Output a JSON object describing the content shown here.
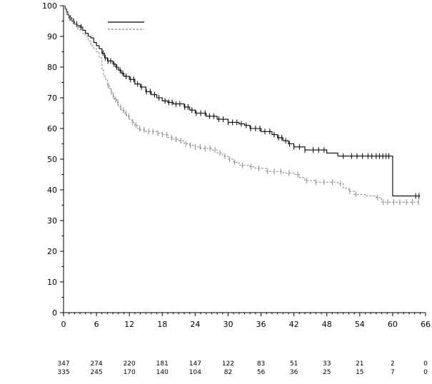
{
  "chart_data": {
    "type": "line",
    "title": "",
    "xlabel": "",
    "ylabel": "",
    "xlim": [
      0,
      66
    ],
    "ylim": [
      0,
      100
    ],
    "x_ticks": [
      0,
      6,
      12,
      18,
      24,
      30,
      36,
      42,
      48,
      54,
      60,
      66
    ],
    "y_ticks": [
      0,
      10,
      20,
      30,
      40,
      50,
      60,
      70,
      80,
      90,
      100
    ],
    "grid": false,
    "legend": {
      "placement": "top-left",
      "entries": [
        {
          "style": "solid",
          "color": "#000000"
        },
        {
          "style": "dashed",
          "color": "#888888"
        }
      ]
    },
    "series": [
      {
        "style": "solid",
        "color": "#000000",
        "points": [
          [
            0,
            100
          ],
          [
            0.3,
            99
          ],
          [
            0.5,
            98
          ],
          [
            0.8,
            97
          ],
          [
            1,
            96
          ],
          [
            1.5,
            95
          ],
          [
            2,
            94
          ],
          [
            2.5,
            93.5
          ],
          [
            3,
            93
          ],
          [
            3.5,
            92
          ],
          [
            4,
            91
          ],
          [
            4.5,
            90
          ],
          [
            5,
            89.5
          ],
          [
            5.5,
            88
          ],
          [
            6,
            87
          ],
          [
            6.5,
            86
          ],
          [
            7,
            84.5
          ],
          [
            7.5,
            83
          ],
          [
            8,
            82
          ],
          [
            9,
            81
          ],
          [
            9.5,
            80
          ],
          [
            10,
            79
          ],
          [
            10.5,
            78
          ],
          [
            11,
            77
          ],
          [
            12,
            76
          ],
          [
            13,
            74.5
          ],
          [
            14,
            73.5
          ],
          [
            15,
            72
          ],
          [
            16,
            71
          ],
          [
            17,
            70
          ],
          [
            18,
            69
          ],
          [
            19,
            68.5
          ],
          [
            20,
            68
          ],
          [
            22,
            67
          ],
          [
            23,
            66
          ],
          [
            24,
            65
          ],
          [
            26,
            64
          ],
          [
            28,
            63
          ],
          [
            30,
            62
          ],
          [
            32,
            61.5
          ],
          [
            33,
            61
          ],
          [
            34,
            60
          ],
          [
            36,
            59
          ],
          [
            38,
            58
          ],
          [
            39,
            57
          ],
          [
            40,
            56
          ],
          [
            41,
            55
          ],
          [
            42,
            54
          ],
          [
            44,
            53
          ],
          [
            48,
            52
          ],
          [
            50,
            51
          ],
          [
            52,
            51
          ],
          [
            55,
            51
          ],
          [
            58,
            51
          ],
          [
            59.9,
            51
          ],
          [
            60,
            38
          ],
          [
            62,
            38
          ],
          [
            64,
            38
          ],
          [
            65,
            38
          ]
        ],
        "censor_x": [
          0.6,
          1.2,
          1.8,
          2.4,
          3.2,
          7.2,
          7.6,
          8.1,
          8.6,
          9.2,
          9.7,
          10.3,
          10.8,
          11.4,
          12.2,
          12.8,
          13.5,
          14.2,
          15.1,
          15.8,
          16.6,
          17.4,
          18.5,
          19.2,
          19.8,
          20.5,
          21.2,
          22.1,
          22.7,
          23.4,
          24.2,
          25,
          25.8,
          26.6,
          27.4,
          28.3,
          29.1,
          30,
          30.8,
          31.6,
          32.4,
          33.3,
          34.1,
          35,
          35.8,
          36.7,
          37.6,
          38.4,
          39.2,
          39.8,
          40.5,
          41.2,
          42,
          43,
          44,
          45.5,
          46.5,
          47.5,
          51,
          52.5,
          53.5,
          54.5,
          55.5,
          56.2,
          57,
          57.6,
          58.2,
          58.8,
          59.3,
          64.2,
          64.8
        ]
      },
      {
        "style": "dashed",
        "color": "#888888",
        "points": [
          [
            0,
            100
          ],
          [
            0.3,
            99
          ],
          [
            0.5,
            98
          ],
          [
            0.8,
            97
          ],
          [
            1,
            96
          ],
          [
            1.5,
            95
          ],
          [
            2,
            94
          ],
          [
            2.5,
            93
          ],
          [
            3,
            92
          ],
          [
            3.5,
            91
          ],
          [
            4,
            90
          ],
          [
            4.5,
            88.5
          ],
          [
            5,
            87
          ],
          [
            5.5,
            86
          ],
          [
            6,
            85
          ],
          [
            6.5,
            83
          ],
          [
            7,
            79
          ],
          [
            7.3,
            77
          ],
          [
            7.7,
            76
          ],
          [
            8,
            74
          ],
          [
            8.3,
            73
          ],
          [
            8.7,
            72
          ],
          [
            9,
            70.5
          ],
          [
            9.3,
            69.5
          ],
          [
            9.7,
            68.5
          ],
          [
            10,
            67
          ],
          [
            10.5,
            66
          ],
          [
            11,
            65
          ],
          [
            11.5,
            64
          ],
          [
            12,
            63
          ],
          [
            12.5,
            62
          ],
          [
            13,
            61
          ],
          [
            13.5,
            60
          ],
          [
            14,
            59.5
          ],
          [
            15,
            59
          ],
          [
            17,
            58.5
          ],
          [
            18,
            58
          ],
          [
            19,
            57
          ],
          [
            20,
            56.5
          ],
          [
            21,
            56
          ],
          [
            22,
            55
          ],
          [
            23,
            54.5
          ],
          [
            24,
            54
          ],
          [
            25,
            53.5
          ],
          [
            27,
            53
          ],
          [
            28,
            52
          ],
          [
            29,
            51
          ],
          [
            30,
            50
          ],
          [
            31,
            49
          ],
          [
            32,
            48
          ],
          [
            34,
            47.5
          ],
          [
            35,
            47
          ],
          [
            37,
            46
          ],
          [
            40,
            45.5
          ],
          [
            42,
            45
          ],
          [
            43,
            44
          ],
          [
            44,
            43
          ],
          [
            46,
            42.5
          ],
          [
            48,
            42.5
          ],
          [
            50,
            42
          ],
          [
            51,
            40.5
          ],
          [
            52,
            39.5
          ],
          [
            53,
            38.5
          ],
          [
            55,
            38
          ],
          [
            57,
            37.5
          ],
          [
            58,
            36
          ],
          [
            60,
            36
          ],
          [
            62,
            36
          ],
          [
            64,
            36
          ],
          [
            65,
            36
          ]
        ],
        "censor_x": [
          0.6,
          1.3,
          1.9,
          2.6,
          8.2,
          8.7,
          9.1,
          9.5,
          9.9,
          10.4,
          10.9,
          11.4,
          11.9,
          12.6,
          13.2,
          13.9,
          14.7,
          15.5,
          16.3,
          17.2,
          18,
          18.8,
          19.7,
          20.5,
          21.4,
          22.3,
          23.1,
          24,
          24.9,
          25.8,
          26.7,
          27.6,
          28.5,
          29.4,
          30.3,
          31.2,
          32.6,
          34.2,
          35.6,
          37.2,
          38.4,
          39.6,
          41.1,
          42.7,
          44.3,
          46,
          47.5,
          49,
          50.5,
          52.2,
          53.3,
          57.2,
          58.3,
          59.1,
          60.2,
          61.3,
          62.5,
          63.6,
          64.7
        ]
      }
    ],
    "risk_table": {
      "x": [
        0,
        6,
        12,
        18,
        24,
        30,
        36,
        42,
        48,
        54,
        60,
        66
      ],
      "rows": [
        {
          "values": [
            "347",
            "274",
            "220",
            "181",
            "147",
            "122",
            "83",
            "51",
            "33",
            "21",
            "2",
            "0"
          ]
        },
        {
          "values": [
            "335",
            "245",
            "170",
            "140",
            "104",
            "82",
            "56",
            "36",
            "25",
            "15",
            "7",
            "0"
          ]
        }
      ]
    }
  }
}
